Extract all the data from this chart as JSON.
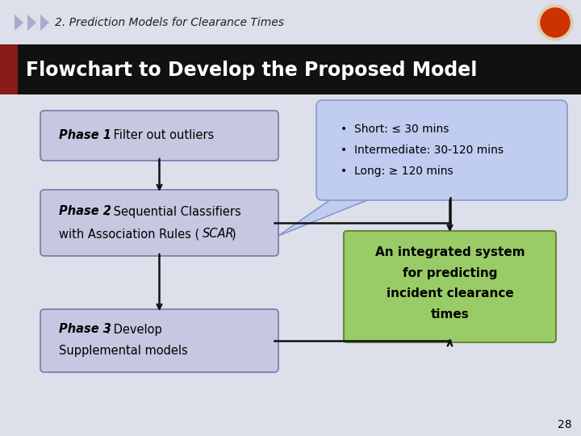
{
  "title_main": "Flowchart to Develop the Proposed Model",
  "title_sub": "2. Prediction Models for Clearance Times",
  "bg_color": "#dde0ea",
  "header_bg": "#111111",
  "header_text_color": "#ffffff",
  "sub_title_color": "#222222",
  "phase_box_bg": "#c5c8e0",
  "phase_box_border": "#7778aa",
  "green_box_bg": "#99cc66",
  "green_box_border": "#668833",
  "callout_bg": "#c0ccf0",
  "callout_border": "#8899cc",
  "callout_lines": [
    "Short: ≤ 30 mins",
    "Intermediate: 30-120 mins",
    "Long: ≥ 120 mins"
  ],
  "page_number": "28",
  "arrow_color": "#111111",
  "red_bar_color": "#8b1a1a",
  "top_bar_bg": "#dde0ea"
}
